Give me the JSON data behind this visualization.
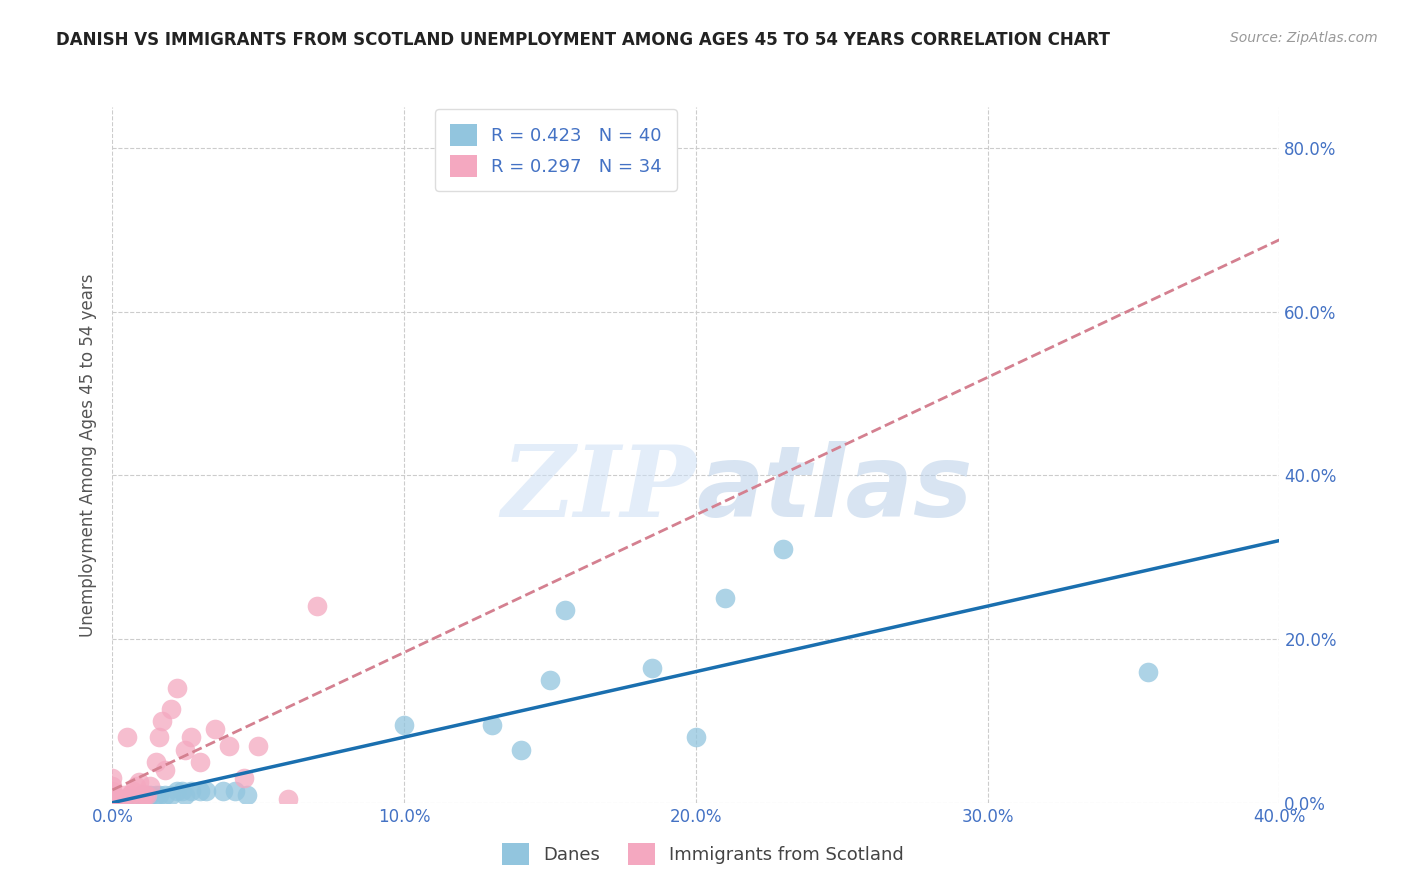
{
  "title": "DANISH VS IMMIGRANTS FROM SCOTLAND UNEMPLOYMENT AMONG AGES 45 TO 54 YEARS CORRELATION CHART",
  "source": "Source: ZipAtlas.com",
  "ylabel": "Unemployment Among Ages 45 to 54 years",
  "xlim": [
    0.0,
    0.4
  ],
  "ylim": [
    0.0,
    0.85
  ],
  "xticks": [
    0.0,
    0.1,
    0.2,
    0.3,
    0.4
  ],
  "yticks": [
    0.0,
    0.2,
    0.4,
    0.6,
    0.8
  ],
  "danes_color": "#92c5de",
  "scots_color": "#f4a8c0",
  "danes_line_color": "#1a6faf",
  "scots_line_color": "#d48090",
  "danes_R": 0.423,
  "danes_N": 40,
  "scots_R": 0.297,
  "scots_N": 34,
  "legend_label_danes": "Danes",
  "legend_label_scots": "Immigrants from Scotland",
  "watermark_zip": "ZIP",
  "watermark_atlas": "atlas",
  "title_color": "#222222",
  "axis_label_color": "#555555",
  "tick_color": "#4472c4",
  "grid_color": "#cccccc",
  "danes_x": [
    0.0,
    0.0,
    0.0,
    0.002,
    0.003,
    0.004,
    0.005,
    0.005,
    0.006,
    0.007,
    0.008,
    0.009,
    0.01,
    0.01,
    0.011,
    0.012,
    0.013,
    0.015,
    0.016,
    0.018,
    0.02,
    0.022,
    0.024,
    0.025,
    0.027,
    0.03,
    0.032,
    0.038,
    0.042,
    0.046,
    0.1,
    0.13,
    0.14,
    0.15,
    0.155,
    0.185,
    0.2,
    0.21,
    0.23,
    0.355
  ],
  "danes_y": [
    0.0,
    0.005,
    0.01,
    0.0,
    0.005,
    0.005,
    0.0,
    0.005,
    0.005,
    0.005,
    0.005,
    0.005,
    0.005,
    0.01,
    0.005,
    0.01,
    0.01,
    0.01,
    0.01,
    0.01,
    0.01,
    0.015,
    0.015,
    0.01,
    0.015,
    0.015,
    0.015,
    0.015,
    0.015,
    0.01,
    0.095,
    0.095,
    0.065,
    0.15,
    0.235,
    0.165,
    0.08,
    0.25,
    0.31,
    0.16
  ],
  "scots_x": [
    0.0,
    0.0,
    0.0,
    0.0,
    0.0,
    0.002,
    0.003,
    0.004,
    0.005,
    0.005,
    0.006,
    0.007,
    0.008,
    0.009,
    0.01,
    0.01,
    0.011,
    0.012,
    0.013,
    0.015,
    0.016,
    0.017,
    0.018,
    0.02,
    0.022,
    0.025,
    0.027,
    0.03,
    0.035,
    0.04,
    0.045,
    0.05,
    0.06,
    0.07
  ],
  "scots_y": [
    0.005,
    0.01,
    0.015,
    0.02,
    0.03,
    0.005,
    0.005,
    0.01,
    0.005,
    0.08,
    0.01,
    0.015,
    0.02,
    0.025,
    0.005,
    0.01,
    0.01,
    0.01,
    0.02,
    0.05,
    0.08,
    0.1,
    0.04,
    0.115,
    0.14,
    0.065,
    0.08,
    0.05,
    0.09,
    0.07,
    0.03,
    0.07,
    0.005,
    0.24
  ]
}
